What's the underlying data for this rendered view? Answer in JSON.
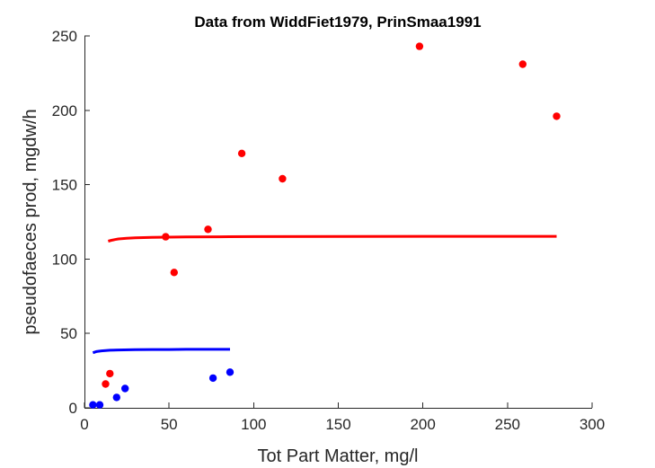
{
  "chart_data": {
    "type": "scatter",
    "title": "Data from WiddFiet1979, PrinSmaa1991",
    "xlabel": "Tot Part Matter, mg/l",
    "ylabel": "pseudofaeces prod, mgdw/h",
    "xlim": [
      0,
      300
    ],
    "ylim": [
      0,
      250
    ],
    "xticks": [
      0,
      50,
      100,
      150,
      200,
      250,
      300
    ],
    "yticks": [
      0,
      50,
      100,
      150,
      200,
      250
    ],
    "grid": false,
    "series": [
      {
        "kind": "points",
        "color": "#ff0000",
        "x": [
          12.5,
          15,
          48,
          53,
          73,
          93,
          117,
          198,
          259,
          279
        ],
        "y": [
          16,
          23,
          115,
          91,
          120,
          171,
          154,
          243,
          231,
          196
        ]
      },
      {
        "kind": "points",
        "color": "#0000ff",
        "x": [
          5,
          9,
          19,
          24,
          76,
          86
        ],
        "y": [
          2,
          2,
          7,
          13,
          20,
          24
        ]
      },
      {
        "kind": "line",
        "color": "#ff0000",
        "x": [
          14,
          16,
          18,
          20,
          25,
          30,
          40,
          60,
          80,
          100,
          150,
          200,
          250,
          279
        ],
        "y": [
          112,
          112.6,
          113.1,
          113.5,
          114.0,
          114.3,
          114.6,
          114.9,
          115.0,
          115.1,
          115.2,
          115.3,
          115.3,
          115.3
        ]
      },
      {
        "kind": "line",
        "color": "#0000ff",
        "x": [
          5,
          7,
          10,
          15,
          20,
          30,
          40,
          50,
          60,
          70,
          86
        ],
        "y": [
          37,
          37.8,
          38.3,
          38.7,
          38.9,
          39.1,
          39.2,
          39.2,
          39.3,
          39.3,
          39.3
        ]
      }
    ]
  }
}
